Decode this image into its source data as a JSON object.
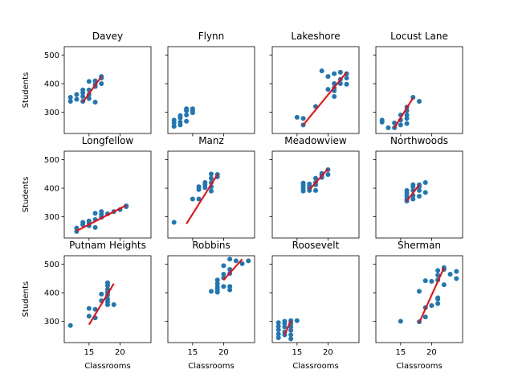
{
  "chart_data": {
    "type": "scatter",
    "layout": "3x4 small multiples, shared axes",
    "xlabel": "Classrooms",
    "ylabel": "Students",
    "xlim": [
      11,
      25
    ],
    "ylim": [
      225,
      530
    ],
    "xticks": [
      15,
      20
    ],
    "yticks": [
      300,
      400,
      500
    ],
    "point_color": "#1f77b4",
    "fit_color": "#ff0000",
    "panels": [
      {
        "title": "Davey",
        "points": [
          [
            12,
            338
          ],
          [
            12,
            352
          ],
          [
            13,
            345
          ],
          [
            13,
            362
          ],
          [
            14,
            338
          ],
          [
            14,
            355
          ],
          [
            14,
            368
          ],
          [
            14,
            378
          ],
          [
            15,
            348
          ],
          [
            15,
            362
          ],
          [
            15,
            378
          ],
          [
            15,
            408
          ],
          [
            16,
            335
          ],
          [
            16,
            390
          ],
          [
            16,
            398
          ],
          [
            16,
            410
          ],
          [
            17,
            400
          ],
          [
            17,
            420
          ],
          [
            17,
            425
          ]
        ],
        "fit": [
          [
            14,
            335
          ],
          [
            17,
            425
          ]
        ]
      },
      {
        "title": "Flynn",
        "points": [
          [
            12,
            250
          ],
          [
            12,
            262
          ],
          [
            12,
            272
          ],
          [
            13,
            255
          ],
          [
            13,
            265
          ],
          [
            13,
            280
          ],
          [
            13,
            288
          ],
          [
            14,
            268
          ],
          [
            14,
            290
          ],
          [
            14,
            305
          ],
          [
            14,
            312
          ],
          [
            15,
            298
          ],
          [
            15,
            305
          ],
          [
            15,
            312
          ]
        ],
        "fit": null
      },
      {
        "title": "Lakeshore",
        "points": [
          [
            15,
            282
          ],
          [
            16,
            278
          ],
          [
            16,
            255
          ],
          [
            18,
            320
          ],
          [
            19,
            445
          ],
          [
            20,
            380
          ],
          [
            20,
            425
          ],
          [
            21,
            355
          ],
          [
            21,
            375
          ],
          [
            21,
            385
          ],
          [
            21,
            400
          ],
          [
            21,
            435
          ],
          [
            22,
            400
          ],
          [
            22,
            415
          ],
          [
            22,
            440
          ],
          [
            23,
            398
          ],
          [
            23,
            420
          ],
          [
            23,
            435
          ]
        ],
        "fit": [
          [
            16,
            255
          ],
          [
            23,
            440
          ]
        ]
      },
      {
        "title": "Locust Lane",
        "points": [
          [
            12,
            265
          ],
          [
            12,
            272
          ],
          [
            13,
            245
          ],
          [
            14,
            245
          ],
          [
            14,
            262
          ],
          [
            15,
            255
          ],
          [
            15,
            272
          ],
          [
            15,
            290
          ],
          [
            16,
            260
          ],
          [
            16,
            278
          ],
          [
            16,
            290
          ],
          [
            16,
            305
          ],
          [
            16,
            318
          ],
          [
            17,
            352
          ],
          [
            18,
            338
          ]
        ],
        "fit": [
          [
            14,
            245
          ],
          [
            17,
            350
          ]
        ]
      },
      {
        "title": "Longfellow",
        "points": [
          [
            13,
            260
          ],
          [
            13,
            248
          ],
          [
            14,
            272
          ],
          [
            14,
            280
          ],
          [
            15,
            268
          ],
          [
            15,
            278
          ],
          [
            15,
            285
          ],
          [
            16,
            262
          ],
          [
            16,
            290
          ],
          [
            16,
            312
          ],
          [
            17,
            298
          ],
          [
            17,
            308
          ],
          [
            17,
            318
          ],
          [
            18,
            310
          ],
          [
            19,
            318
          ],
          [
            20,
            325
          ],
          [
            21,
            335
          ],
          [
            21,
            338
          ]
        ],
        "fit": [
          [
            13,
            250
          ],
          [
            21,
            340
          ]
        ]
      },
      {
        "title": "Manz",
        "points": [
          [
            12,
            280
          ],
          [
            15,
            362
          ],
          [
            16,
            362
          ],
          [
            16,
            395
          ],
          [
            16,
            405
          ],
          [
            17,
            402
          ],
          [
            17,
            412
          ],
          [
            17,
            420
          ],
          [
            18,
            390
          ],
          [
            18,
            405
          ],
          [
            18,
            420
          ],
          [
            18,
            435
          ],
          [
            18,
            450
          ],
          [
            19,
            440
          ],
          [
            19,
            448
          ]
        ],
        "fit": [
          [
            14,
            275
          ],
          [
            19,
            448
          ]
        ]
      },
      {
        "title": "Meadowview",
        "points": [
          [
            16,
            390
          ],
          [
            16,
            400
          ],
          [
            16,
            410
          ],
          [
            16,
            418
          ],
          [
            17,
            392
          ],
          [
            17,
            400
          ],
          [
            17,
            408
          ],
          [
            17,
            415
          ],
          [
            18,
            392
          ],
          [
            18,
            412
          ],
          [
            18,
            420
          ],
          [
            18,
            435
          ],
          [
            19,
            438
          ],
          [
            19,
            445
          ],
          [
            19,
            452
          ],
          [
            20,
            448
          ],
          [
            20,
            465
          ]
        ],
        "fit": [
          [
            17,
            395
          ],
          [
            20,
            468
          ]
        ]
      },
      {
        "title": "Northwoods",
        "points": [
          [
            16,
            355
          ],
          [
            16,
            362
          ],
          [
            16,
            372
          ],
          [
            16,
            382
          ],
          [
            16,
            392
          ],
          [
            17,
            362
          ],
          [
            17,
            375
          ],
          [
            17,
            392
          ],
          [
            17,
            405
          ],
          [
            17,
            412
          ],
          [
            18,
            372
          ],
          [
            18,
            392
          ],
          [
            18,
            405
          ],
          [
            18,
            412
          ],
          [
            19,
            385
          ],
          [
            19,
            420
          ]
        ],
        "fit": [
          [
            16,
            355
          ],
          [
            18,
            412
          ]
        ]
      },
      {
        "title": "Putnam Heights",
        "points": [
          [
            12,
            285
          ],
          [
            15,
            318
          ],
          [
            15,
            345
          ],
          [
            16,
            312
          ],
          [
            16,
            342
          ],
          [
            17,
            372
          ],
          [
            17,
            395
          ],
          [
            18,
            358
          ],
          [
            18,
            368
          ],
          [
            18,
            378
          ],
          [
            18,
            392
          ],
          [
            18,
            402
          ],
          [
            18,
            412
          ],
          [
            18,
            425
          ],
          [
            18,
            435
          ],
          [
            19,
            358
          ]
        ],
        "fit": [
          [
            15,
            288
          ],
          [
            19,
            432
          ]
        ]
      },
      {
        "title": "Robbins",
        "points": [
          [
            18,
            405
          ],
          [
            19,
            402
          ],
          [
            19,
            412
          ],
          [
            19,
            420
          ],
          [
            19,
            432
          ],
          [
            19,
            445
          ],
          [
            20,
            422
          ],
          [
            20,
            452
          ],
          [
            20,
            465
          ],
          [
            20,
            495
          ],
          [
            21,
            410
          ],
          [
            21,
            422
          ],
          [
            21,
            468
          ],
          [
            21,
            482
          ],
          [
            21,
            518
          ],
          [
            22,
            512
          ],
          [
            23,
            502
          ],
          [
            24,
            512
          ]
        ],
        "fit": [
          [
            20,
            445
          ],
          [
            23,
            518
          ]
        ]
      },
      {
        "title": "Roosevelt",
        "points": [
          [
            12,
            242
          ],
          [
            12,
            255
          ],
          [
            12,
            270
          ],
          [
            12,
            282
          ],
          [
            12,
            295
          ],
          [
            13,
            252
          ],
          [
            13,
            262
          ],
          [
            13,
            280
          ],
          [
            13,
            292
          ],
          [
            13,
            300
          ],
          [
            14,
            238
          ],
          [
            14,
            252
          ],
          [
            14,
            268
          ],
          [
            14,
            280
          ],
          [
            14,
            292
          ],
          [
            14,
            302
          ],
          [
            15,
            302
          ]
        ],
        "fit": [
          [
            13,
            252
          ],
          [
            14,
            302
          ]
        ]
      },
      {
        "title": "Sherman",
        "points": [
          [
            15,
            300
          ],
          [
            18,
            298
          ],
          [
            18,
            405
          ],
          [
            19,
            315
          ],
          [
            19,
            348
          ],
          [
            19,
            442
          ],
          [
            20,
            355
          ],
          [
            20,
            440
          ],
          [
            21,
            362
          ],
          [
            21,
            378
          ],
          [
            21,
            382
          ],
          [
            21,
            445
          ],
          [
            21,
            462
          ],
          [
            21,
            478
          ],
          [
            22,
            428
          ],
          [
            22,
            482
          ],
          [
            22,
            488
          ],
          [
            23,
            465
          ],
          [
            24,
            450
          ],
          [
            24,
            475
          ]
        ],
        "fit": [
          [
            18,
            295
          ],
          [
            22,
            488
          ]
        ]
      }
    ]
  }
}
